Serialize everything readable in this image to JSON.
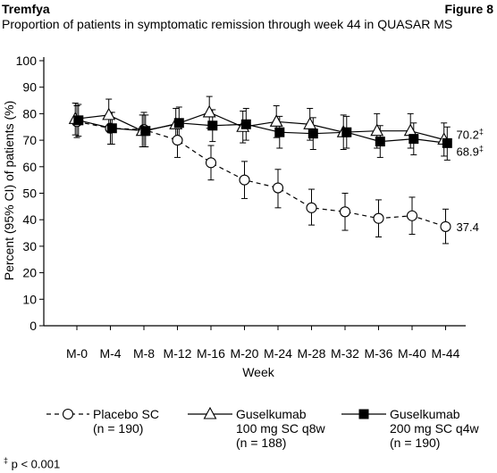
{
  "header": {
    "brand": "Tremfya",
    "figure_label": "Figure 8",
    "title": "Proportion of patients in symptomatic remission through week 44 in QUASAR MS"
  },
  "footnote": {
    "symbol": "‡",
    "text": "p < 0.001"
  },
  "chart_data": {
    "type": "line",
    "title": "Proportion of patients in symptomatic remission through week 44 in QUASAR MS",
    "xlabel": "Week",
    "ylabel": "Percent (95% CI) of patients (%)",
    "ylim": [
      0,
      100
    ],
    "yticks": [
      0,
      10,
      20,
      30,
      40,
      50,
      60,
      70,
      80,
      90,
      100
    ],
    "categories": [
      "M-0",
      "M-4",
      "M-8",
      "M-12",
      "M-16",
      "M-20",
      "M-24",
      "M-28",
      "M-32",
      "M-36",
      "M-40",
      "M-44"
    ],
    "grid": false,
    "legend_position": "bottom",
    "series": [
      {
        "name": "Placebo SC",
        "n_label": "(n = 190)",
        "marker": "circle-open",
        "line": "dashed",
        "values": [
          77,
          74.5,
          74,
          70,
          61.5,
          55,
          52,
          44.5,
          43,
          40.5,
          41.5,
          37.4
        ],
        "ci_low": [
          71,
          68.5,
          67.5,
          63.5,
          55,
          48,
          44.5,
          38,
          36,
          33.5,
          34.5,
          31
        ],
        "ci_high": [
          83,
          80.5,
          80.5,
          76.5,
          68,
          62,
          59,
          51.5,
          50,
          47.5,
          48.5,
          44
        ],
        "end_label": "37.4"
      },
      {
        "name": "Guselkumab 100 mg SC q8w",
        "name_lines": [
          "Guselkumab",
          "100 mg SC q8w"
        ],
        "n_label": "(n = 188)",
        "marker": "triangle-open",
        "line": "solid",
        "values": [
          78,
          79.5,
          73.5,
          76,
          80.5,
          75,
          77,
          76,
          73,
          73.5,
          73.5,
          70.2
        ],
        "ci_low": [
          72,
          73.5,
          67.5,
          70,
          74.5,
          69,
          71,
          70,
          66.5,
          67,
          67,
          64
        ],
        "ci_high": [
          84,
          85.5,
          79.5,
          82,
          86.5,
          81,
          83,
          82,
          79.5,
          80,
          80,
          76.5
        ],
        "end_label": "70.2‡"
      },
      {
        "name": "Guselkumab 200 mg SC q4w",
        "name_lines": [
          "Guselkumab",
          "200 mg SC q4w"
        ],
        "n_label": "(n = 190)",
        "marker": "square-filled",
        "line": "solid",
        "values": [
          77.5,
          74.5,
          73.5,
          76.5,
          75.5,
          76,
          73,
          72.5,
          73,
          69.5,
          70.5,
          68.9
        ],
        "ci_low": [
          71.5,
          68.5,
          67.5,
          70.5,
          69.5,
          70,
          67,
          66.5,
          67,
          63.5,
          64.5,
          62.5
        ],
        "ci_high": [
          83.5,
          80.5,
          79.5,
          82.5,
          81.5,
          82,
          79,
          78.5,
          79,
          75.5,
          76.5,
          75
        ],
        "end_label": "68.9‡"
      }
    ]
  }
}
